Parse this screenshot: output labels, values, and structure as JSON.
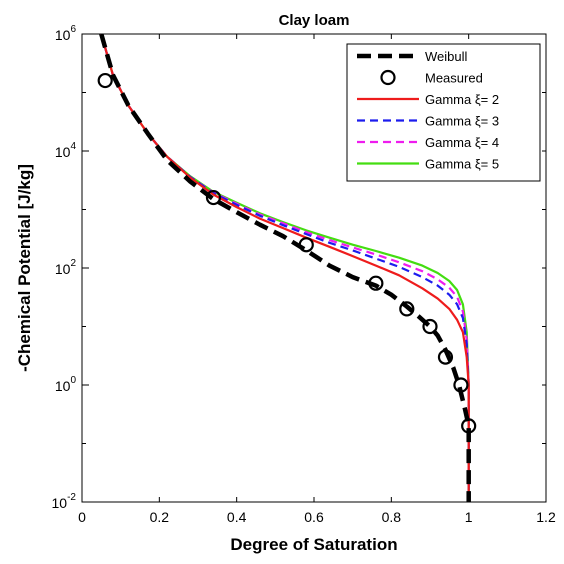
{
  "chart_data": {
    "type": "line",
    "title": "Clay loam",
    "xlabel": "Degree of Saturation",
    "ylabel": "-Chemical Potential [J/kg]",
    "xlim": [
      0,
      1.2
    ],
    "ylim": [
      0.01,
      1000000
    ],
    "yscale": "log",
    "xticks": [
      0,
      0.2,
      0.4,
      0.6,
      0.8,
      1,
      1.2
    ],
    "xtick_labels": [
      "0",
      "0.2",
      "0.4",
      "0.6",
      "0.8",
      "1",
      "1.2"
    ],
    "yticks": [
      0.01,
      1,
      100,
      10000,
      1000000
    ],
    "ytick_labels": [
      {
        "base": "10",
        "exp": "-2"
      },
      {
        "base": "10",
        "exp": "0"
      },
      {
        "base": "10",
        "exp": "2"
      },
      {
        "base": "10",
        "exp": "4"
      },
      {
        "base": "10",
        "exp": "6"
      }
    ],
    "grid": false,
    "legend_position": "top-right",
    "series": [
      {
        "name": "Weibull",
        "style": "dash-thick",
        "color": "#000000",
        "x": [
          0.05,
          0.08,
          0.12,
          0.17,
          0.22,
          0.28,
          0.34,
          0.4,
          0.46,
          0.52,
          0.58,
          0.64,
          0.7,
          0.76,
          0.8,
          0.84,
          0.87,
          0.9,
          0.92,
          0.94,
          0.96,
          0.975,
          0.99,
          1.0,
          1.0
        ],
        "y": [
          1000000,
          200000,
          60000,
          20000,
          7000,
          3000,
          1500,
          900,
          550,
          350,
          200,
          110,
          70,
          50,
          35,
          22,
          15,
          10,
          7,
          4,
          2,
          1,
          0.4,
          0.2,
          0.01
        ]
      },
      {
        "name": "Measured",
        "style": "circles",
        "color": "#000000",
        "x": [
          0.06,
          0.34,
          0.58,
          0.76,
          0.84,
          0.9,
          0.94,
          0.98,
          1.0
        ],
        "y": [
          160000,
          1600,
          250,
          55,
          20,
          10,
          3,
          1,
          0.2
        ]
      },
      {
        "name": "Gamma ξ= 2",
        "style": "solid",
        "color": "#ee1c1c",
        "x": [
          0.05,
          0.08,
          0.12,
          0.17,
          0.22,
          0.28,
          0.34,
          0.4,
          0.46,
          0.52,
          0.58,
          0.64,
          0.7,
          0.76,
          0.82,
          0.88,
          0.92,
          0.95,
          0.97,
          0.985,
          0.995,
          1.0,
          1.0
        ],
        "y": [
          1000000,
          200000,
          60000,
          20000,
          8000,
          3500,
          1800,
          1100,
          700,
          480,
          330,
          230,
          160,
          110,
          75,
          45,
          30,
          20,
          13,
          8,
          3,
          1,
          0.01
        ]
      },
      {
        "name": "Gamma ξ= 3",
        "style": "dash",
        "color": "#1c1cee",
        "x": [
          0.05,
          0.08,
          0.12,
          0.17,
          0.22,
          0.28,
          0.34,
          0.4,
          0.46,
          0.52,
          0.58,
          0.64,
          0.7,
          0.76,
          0.82,
          0.88,
          0.92,
          0.95,
          0.97,
          0.985,
          0.995,
          1.0,
          1.0
        ],
        "y": [
          1000000,
          200000,
          60000,
          20000,
          8000,
          3600,
          1900,
          1200,
          780,
          540,
          380,
          270,
          200,
          145,
          105,
          70,
          50,
          35,
          24,
          14,
          5,
          1,
          0.01
        ]
      },
      {
        "name": "Gamma ξ= 4",
        "style": "dash",
        "color": "#ee1cee",
        "x": [
          0.05,
          0.08,
          0.12,
          0.17,
          0.22,
          0.28,
          0.34,
          0.4,
          0.46,
          0.52,
          0.58,
          0.64,
          0.7,
          0.76,
          0.82,
          0.88,
          0.92,
          0.95,
          0.97,
          0.985,
          0.995,
          1.0,
          1.0
        ],
        "y": [
          1000000,
          200000,
          60000,
          20000,
          8000,
          3600,
          1950,
          1250,
          820,
          580,
          410,
          300,
          225,
          170,
          125,
          88,
          64,
          46,
          32,
          18,
          6,
          1,
          0.01
        ]
      },
      {
        "name": "Gamma ξ= 5",
        "style": "solid",
        "color": "#44dd11",
        "x": [
          0.05,
          0.08,
          0.12,
          0.17,
          0.22,
          0.28,
          0.34,
          0.4,
          0.46,
          0.52,
          0.58,
          0.64,
          0.7,
          0.76,
          0.82,
          0.88,
          0.92,
          0.95,
          0.97,
          0.985,
          0.995,
          1.0,
          1.0
        ],
        "y": [
          1000000,
          200000,
          60000,
          20000,
          8000,
          3700,
          2000,
          1300,
          860,
          610,
          440,
          330,
          250,
          195,
          150,
          110,
          82,
          60,
          42,
          24,
          8,
          1,
          0.01
        ]
      }
    ]
  }
}
